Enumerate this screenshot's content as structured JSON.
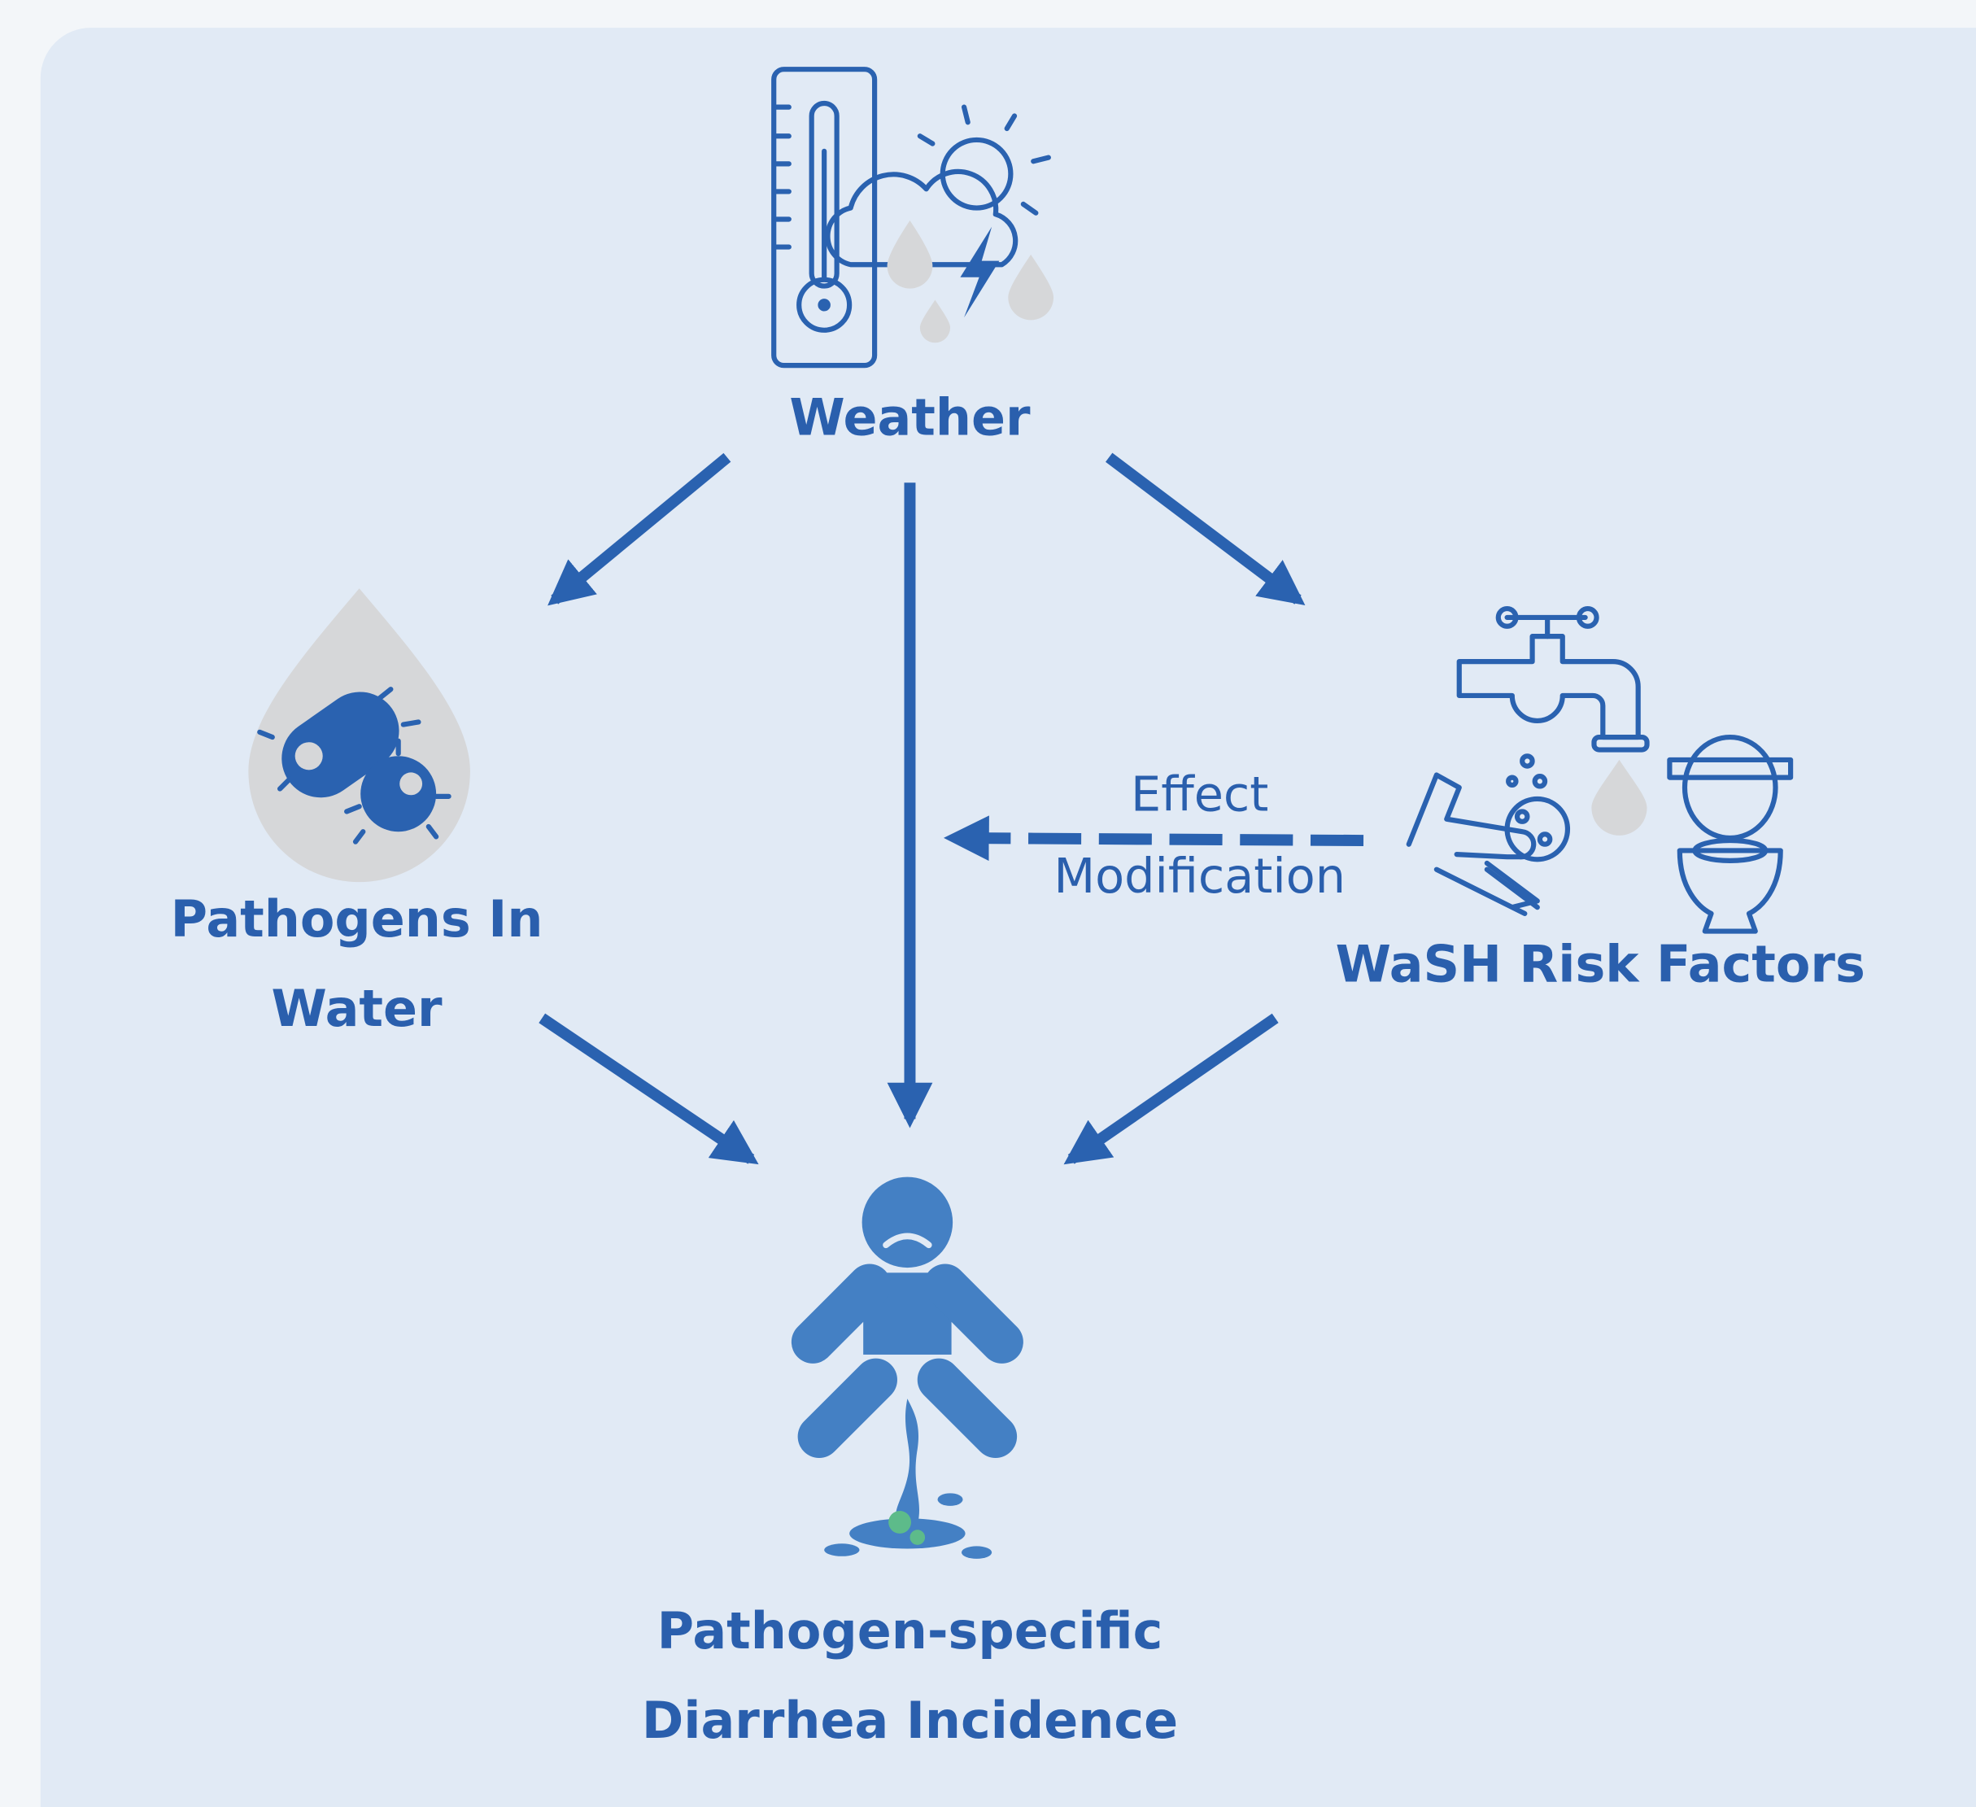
{
  "nodes": [
    {
      "label": [
        "Weather"
      ]
    },
    {
      "label": [
        "Pathogens In",
        "Water"
      ]
    },
    {
      "label": [
        "WaSH Risk Factors"
      ]
    },
    {
      "label": [
        "Pathogen-specific",
        "Diarrhea Incidence"
      ]
    }
  ],
  "edges": [
    {
      "label": [
        "Effect",
        "Modification"
      ]
    }
  ]
}
